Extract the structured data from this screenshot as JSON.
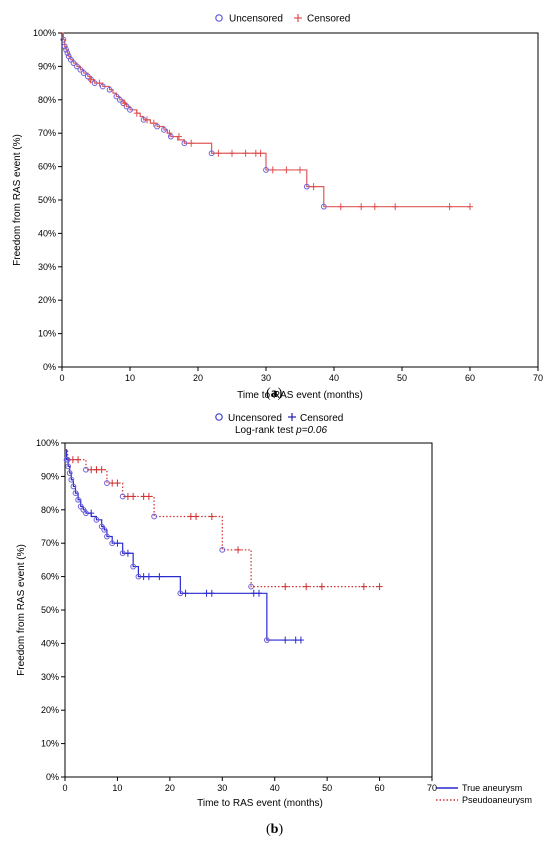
{
  "figure": {
    "caption_a_letter": "a",
    "caption_b_letter": "b"
  },
  "chart_data": [
    {
      "type": "line",
      "panel": "a",
      "step": true,
      "xlabel": "Time to RAS event (months)",
      "ylabel": "Freedom from RAS event (%)",
      "xlim": [
        0,
        70
      ],
      "ylim": [
        0,
        100
      ],
      "xticks": [
        0,
        10,
        20,
        30,
        40,
        50,
        60,
        70
      ],
      "yticks": [
        0,
        10,
        20,
        30,
        40,
        50,
        60,
        70,
        80,
        90,
        100
      ],
      "ytick_suffix": "%",
      "grid": false,
      "legend": {
        "placement": "top-center",
        "entries": [
          {
            "label": "Uncensored",
            "marker": "circle",
            "color": "#5a5ae0"
          },
          {
            "label": "Censored",
            "marker": "plus",
            "color": "#e05050"
          }
        ]
      },
      "series": [
        {
          "color": "#e05a5a",
          "steps": [
            [
              0,
              100
            ],
            [
              0.2,
              98
            ],
            [
              0.4,
              96
            ],
            [
              0.6,
              95
            ],
            [
              0.8,
              94
            ],
            [
              1,
              93
            ],
            [
              1.3,
              92
            ],
            [
              1.7,
              91
            ],
            [
              2.2,
              90
            ],
            [
              2.7,
              89
            ],
            [
              3.2,
              88
            ],
            [
              3.8,
              87
            ],
            [
              4.3,
              86
            ],
            [
              4.8,
              85
            ],
            [
              6,
              84
            ],
            [
              7,
              83
            ],
            [
              7.5,
              82
            ],
            [
              8,
              81
            ],
            [
              8.5,
              80
            ],
            [
              9,
              79
            ],
            [
              9.5,
              78
            ],
            [
              10,
              77
            ],
            [
              11,
              76
            ],
            [
              11.5,
              75
            ],
            [
              12,
              74
            ],
            [
              13,
              73
            ],
            [
              14,
              72
            ],
            [
              15,
              71
            ],
            [
              15.5,
              70
            ],
            [
              16,
              69
            ],
            [
              17,
              68
            ],
            [
              18,
              67
            ],
            [
              22,
              64
            ],
            [
              30,
              59
            ],
            [
              36,
              54
            ],
            [
              38.5,
              48
            ],
            [
              60,
              48
            ]
          ],
          "uncensored": [
            [
              0.2,
              98
            ],
            [
              0.4,
              96
            ],
            [
              0.6,
              95
            ],
            [
              0.8,
              94
            ],
            [
              1,
              93
            ],
            [
              1.3,
              92
            ],
            [
              1.7,
              91
            ],
            [
              2.2,
              90
            ],
            [
              2.7,
              89
            ],
            [
              3.2,
              88
            ],
            [
              3.8,
              87
            ],
            [
              4.3,
              86
            ],
            [
              4.8,
              85
            ],
            [
              6,
              84
            ],
            [
              7,
              83
            ],
            [
              8,
              81
            ],
            [
              8.5,
              80
            ],
            [
              9,
              79
            ],
            [
              9.5,
              78
            ],
            [
              10,
              77
            ],
            [
              12,
              74
            ],
            [
              14,
              72
            ],
            [
              15,
              71
            ],
            [
              16,
              69
            ],
            [
              18,
              67
            ],
            [
              22,
              64
            ],
            [
              30,
              59
            ],
            [
              36,
              54
            ],
            [
              38.5,
              48
            ]
          ],
          "censored": [
            [
              4.2,
              86
            ],
            [
              5.5,
              85
            ],
            [
              9.2,
              79
            ],
            [
              11,
              76
            ],
            [
              12.5,
              74
            ],
            [
              13.5,
              73
            ],
            [
              15.8,
              70
            ],
            [
              17.2,
              69
            ],
            [
              19,
              67
            ],
            [
              23,
              64
            ],
            [
              25,
              64
            ],
            [
              27,
              64
            ],
            [
              28.5,
              64
            ],
            [
              29.2,
              64
            ],
            [
              31,
              59
            ],
            [
              33,
              59
            ],
            [
              35,
              59
            ],
            [
              37,
              54
            ],
            [
              41,
              48
            ],
            [
              44,
              48
            ],
            [
              46,
              48
            ],
            [
              49,
              48
            ],
            [
              57,
              48
            ],
            [
              60,
              48
            ]
          ]
        }
      ]
    },
    {
      "type": "line",
      "panel": "b",
      "step": true,
      "annotation_prefix": "Log-rank test ",
      "annotation_p": "p=0.06",
      "xlabel": "Time to RAS event (months)",
      "ylabel": "Freedom from RAS event (%)",
      "xlim": [
        0,
        70
      ],
      "ylim": [
        0,
        100
      ],
      "xticks": [
        0,
        10,
        20,
        30,
        40,
        50,
        60,
        70
      ],
      "yticks": [
        0,
        10,
        20,
        30,
        40,
        50,
        60,
        70,
        80,
        90,
        100
      ],
      "ytick_suffix": "%",
      "grid": false,
      "legend": {
        "placement": "top-center",
        "entries": [
          {
            "label": "Uncensored",
            "marker": "circle",
            "color": "#4040d0"
          },
          {
            "label": "Censored",
            "marker": "plus",
            "color": "#2020b0"
          }
        ]
      },
      "series": [
        {
          "name": "True aneurysm",
          "color": "#2a2ad0",
          "dash": "solid",
          "steps": [
            [
              0,
              98
            ],
            [
              0.3,
              95
            ],
            [
              0.6,
              93
            ],
            [
              0.9,
              91
            ],
            [
              1.2,
              89
            ],
            [
              1.6,
              87
            ],
            [
              2,
              85
            ],
            [
              2.5,
              83
            ],
            [
              3,
              81
            ],
            [
              3.5,
              80
            ],
            [
              4,
              79
            ],
            [
              5,
              78
            ],
            [
              6,
              77
            ],
            [
              7,
              75
            ],
            [
              7.5,
              74
            ],
            [
              8,
              72
            ],
            [
              9,
              70
            ],
            [
              11,
              67
            ],
            [
              13,
              63
            ],
            [
              14,
              60
            ],
            [
              22,
              55
            ],
            [
              38.5,
              41
            ],
            [
              45,
              41
            ]
          ],
          "uncensored": [
            [
              0.3,
              95
            ],
            [
              0.6,
              93
            ],
            [
              0.9,
              91
            ],
            [
              1.2,
              89
            ],
            [
              1.6,
              87
            ],
            [
              2,
              85
            ],
            [
              2.5,
              83
            ],
            [
              3,
              81
            ],
            [
              3.5,
              80
            ],
            [
              4,
              79
            ],
            [
              6,
              77
            ],
            [
              7,
              75
            ],
            [
              7.5,
              74
            ],
            [
              8,
              72
            ],
            [
              9,
              70
            ],
            [
              11,
              67
            ],
            [
              13,
              63
            ],
            [
              14,
              60
            ],
            [
              22,
              55
            ],
            [
              38.5,
              41
            ]
          ],
          "censored": [
            [
              5,
              79
            ],
            [
              10,
              70
            ],
            [
              12,
              67
            ],
            [
              15,
              60
            ],
            [
              16,
              60
            ],
            [
              18,
              60
            ],
            [
              23,
              55
            ],
            [
              27,
              55
            ],
            [
              28,
              55
            ],
            [
              36,
              55
            ],
            [
              37,
              55
            ],
            [
              42,
              41
            ],
            [
              44,
              41
            ],
            [
              45,
              41
            ]
          ]
        },
        {
          "name": "Pseudoaneurysm",
          "color": "#d03030",
          "dash": "dotted",
          "steps": [
            [
              0,
              98
            ],
            [
              0.5,
              95
            ],
            [
              4,
              92
            ],
            [
              8,
              88
            ],
            [
              11,
              84
            ],
            [
              17,
              78
            ],
            [
              30,
              68
            ],
            [
              35.5,
              57
            ],
            [
              60,
              57
            ]
          ],
          "uncensored": [
            [
              0.5,
              95
            ],
            [
              4,
              92
            ],
            [
              8,
              88
            ],
            [
              11,
              84
            ],
            [
              17,
              78
            ],
            [
              30,
              68
            ],
            [
              35.5,
              57
            ]
          ],
          "censored": [
            [
              1.5,
              95
            ],
            [
              2.5,
              95
            ],
            [
              5,
              92
            ],
            [
              6,
              92
            ],
            [
              7,
              92
            ],
            [
              9,
              88
            ],
            [
              10,
              88
            ],
            [
              12,
              84
            ],
            [
              13,
              84
            ],
            [
              15,
              84
            ],
            [
              16,
              84
            ],
            [
              24,
              78
            ],
            [
              25,
              78
            ],
            [
              28,
              78
            ],
            [
              33,
              68
            ],
            [
              42,
              57
            ],
            [
              46,
              57
            ],
            [
              49,
              57
            ],
            [
              57,
              57
            ],
            [
              60,
              57
            ]
          ]
        }
      ]
    }
  ]
}
